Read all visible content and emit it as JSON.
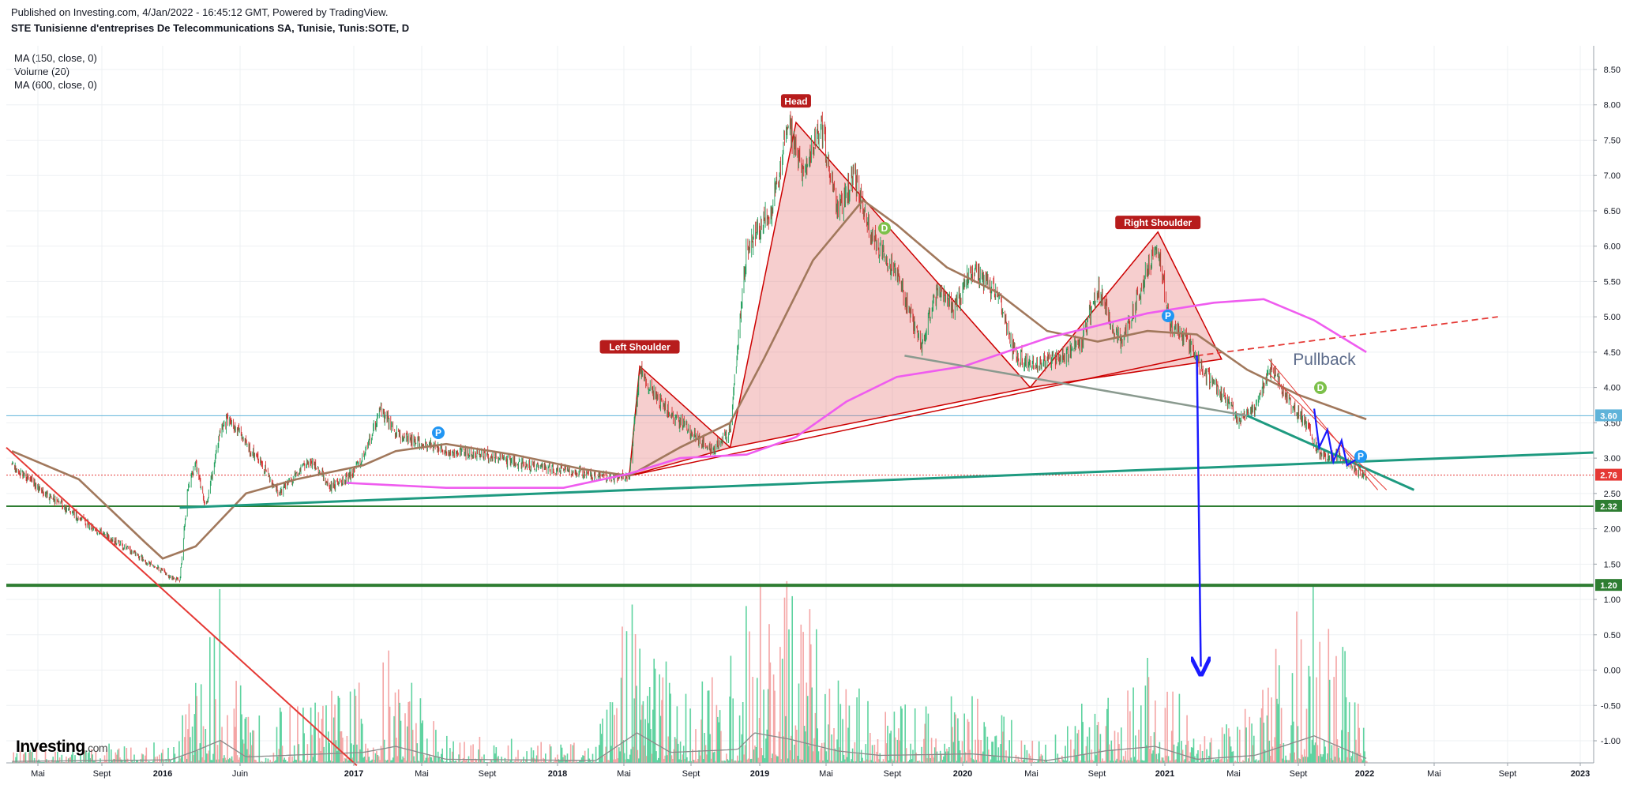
{
  "header": {
    "published": "Published on Investing.com, 4/Jan/2022 - 16:45:12 GMT, Powered by TradingView.",
    "title": "STE Tunisienne d'entreprises De Telecommunications SA, Tunisie, Tunis:SOTE, D"
  },
  "indicators": [
    "MA (150, close, 0)",
    "Volume (20)",
    "MA (600, close, 0)"
  ],
  "logo": {
    "main": "Investing",
    "suffix": ".com"
  },
  "chart_data": {
    "type": "candlestick",
    "title": "STE Tunisienne d'entreprises De Telecommunications SA, Tunisie, Tunis:SOTE, D",
    "x_ticks": [
      "Mai",
      "Sept",
      "2016",
      "Juin",
      "2017",
      "Mai",
      "Sept",
      "2018",
      "Mai",
      "Sept",
      "2019",
      "Mai",
      "Sept",
      "2020",
      "Mai",
      "Sept",
      "2021",
      "Mai",
      "Sept",
      "2022",
      "Mai",
      "Sept",
      "2023"
    ],
    "bold_x_ticks": [
      "2016",
      "2017",
      "2018",
      "2019",
      "2020",
      "2021",
      "2022",
      "2023"
    ],
    "y_ticks": [
      8.5,
      8.0,
      7.5,
      7.0,
      6.5,
      6.0,
      5.5,
      5.0,
      4.5,
      4.0,
      3.5,
      3.0,
      2.5,
      2.0,
      1.5,
      1.0,
      0.5,
      0.0,
      -0.5,
      -1.0
    ],
    "y_range": [
      -1.35,
      8.75
    ],
    "price_levels": [
      {
        "label": "3.60",
        "value": 3.6,
        "color": "#5fb3d9"
      },
      {
        "label": "2.76",
        "value": 2.76,
        "color": "#e53935"
      },
      {
        "label": "2.32",
        "value": 2.32,
        "color": "#2e7d32"
      },
      {
        "label": "1.20",
        "value": 1.2,
        "color": "#2e7d32"
      }
    ],
    "annotations": {
      "left_shoulder": "Left Shoulder",
      "head": "Head",
      "right_shoulder": "Right Shoulder",
      "pullback": "Pullback",
      "markers": [
        "P",
        "D",
        "P",
        "D",
        "P"
      ]
    },
    "price_path": [
      [
        "2015-04-01",
        2.9
      ],
      [
        "2015-06-01",
        2.5
      ],
      [
        "2015-08-01",
        2.15
      ],
      [
        "2015-10-01",
        1.85
      ],
      [
        "2015-12-01",
        1.55
      ],
      [
        "2016-01-10",
        1.35
      ],
      [
        "2016-02-01",
        1.25
      ],
      [
        "2016-02-15",
        2.5
      ],
      [
        "2016-03-01",
        2.95
      ],
      [
        "2016-03-20",
        2.3
      ],
      [
        "2016-04-15",
        3.4
      ],
      [
        "2016-05-01",
        3.55
      ],
      [
        "2016-06-01",
        3.2
      ],
      [
        "2016-07-01",
        2.9
      ],
      [
        "2016-08-01",
        2.5
      ],
      [
        "2016-09-01",
        2.8
      ],
      [
        "2016-10-01",
        2.95
      ],
      [
        "2016-11-01",
        2.6
      ],
      [
        "2016-12-01",
        2.7
      ],
      [
        "2017-01-01",
        3.0
      ],
      [
        "2017-02-01",
        3.7
      ],
      [
        "2017-03-01",
        3.35
      ],
      [
        "2017-04-01",
        3.25
      ],
      [
        "2017-06-01",
        3.1
      ],
      [
        "2017-08-01",
        3.05
      ],
      [
        "2017-10-01",
        2.95
      ],
      [
        "2017-12-01",
        2.85
      ],
      [
        "2018-02-01",
        2.8
      ],
      [
        "2018-04-01",
        2.7
      ],
      [
        "2018-05-01",
        2.75
      ],
      [
        "2018-05-20",
        4.25
      ],
      [
        "2018-06-15",
        3.9
      ],
      [
        "2018-08-01",
        3.5
      ],
      [
        "2018-10-01",
        3.1
      ],
      [
        "2018-11-01",
        3.4
      ],
      [
        "2018-12-01",
        6.0
      ],
      [
        "2019-01-15",
        6.5
      ],
      [
        "2019-02-15",
        7.7
      ],
      [
        "2019-03-15",
        7.0
      ],
      [
        "2019-04-15",
        7.75
      ],
      [
        "2019-05-15",
        6.5
      ],
      [
        "2019-06-15",
        7.0
      ],
      [
        "2019-07-15",
        6.2
      ],
      [
        "2019-09-01",
        5.6
      ],
      [
        "2019-10-15",
        4.6
      ],
      [
        "2019-11-15",
        5.4
      ],
      [
        "2019-12-15",
        5.1
      ],
      [
        "2020-01-15",
        5.7
      ],
      [
        "2020-03-01",
        5.3
      ],
      [
        "2020-04-01",
        4.5
      ],
      [
        "2020-05-01",
        4.3
      ],
      [
        "2020-06-15",
        4.4
      ],
      [
        "2020-08-01",
        4.6
      ],
      [
        "2020-09-01",
        5.4
      ],
      [
        "2020-10-15",
        4.6
      ],
      [
        "2020-12-01",
        5.7
      ],
      [
        "2020-12-20",
        6.0
      ],
      [
        "2021-01-10",
        4.9
      ],
      [
        "2021-02-15",
        4.6
      ],
      [
        "2021-03-15",
        4.2
      ],
      [
        "2021-04-15",
        3.9
      ],
      [
        "2021-05-15",
        3.55
      ],
      [
        "2021-06-15",
        3.7
      ],
      [
        "2021-07-15",
        4.3
      ],
      [
        "2021-08-15",
        3.8
      ],
      [
        "2021-09-15",
        3.5
      ],
      [
        "2021-10-15",
        3.0
      ],
      [
        "2021-11-15",
        3.05
      ],
      [
        "2021-12-15",
        2.85
      ],
      [
        "2022-01-04",
        2.76
      ]
    ],
    "ma150": [
      [
        "2015-04-01",
        3.1
      ],
      [
        "2015-08-01",
        2.7
      ],
      [
        "2015-12-01",
        1.8
      ],
      [
        "2016-01-01",
        1.58
      ],
      [
        "2016-03-01",
        1.75
      ],
      [
        "2016-06-01",
        2.5
      ],
      [
        "2016-09-01",
        2.7
      ],
      [
        "2017-01-01",
        2.9
      ],
      [
        "2017-03-01",
        3.1
      ],
      [
        "2017-06-01",
        3.2
      ],
      [
        "2017-10-01",
        3.05
      ],
      [
        "2018-02-01",
        2.85
      ],
      [
        "2018-05-01",
        2.75
      ],
      [
        "2018-08-01",
        3.15
      ],
      [
        "2018-11-01",
        3.5
      ],
      [
        "2019-01-01",
        4.4
      ],
      [
        "2019-04-01",
        5.8
      ],
      [
        "2019-07-01",
        6.65
      ],
      [
        "2019-09-01",
        6.3
      ],
      [
        "2019-12-01",
        5.7
      ],
      [
        "2020-03-01",
        5.35
      ],
      [
        "2020-06-01",
        4.8
      ],
      [
        "2020-09-01",
        4.65
      ],
      [
        "2020-12-01",
        4.8
      ],
      [
        "2021-03-01",
        4.75
      ],
      [
        "2021-06-01",
        4.25
      ],
      [
        "2021-09-01",
        3.9
      ],
      [
        "2022-01-04",
        3.55
      ]
    ],
    "ma600": [
      [
        "2016-12-01",
        2.65
      ],
      [
        "2017-06-01",
        2.58
      ],
      [
        "2018-01-01",
        2.58
      ],
      [
        "2018-05-01",
        2.78
      ],
      [
        "2018-08-01",
        3.0
      ],
      [
        "2018-12-01",
        3.05
      ],
      [
        "2019-03-01",
        3.3
      ],
      [
        "2019-06-01",
        3.8
      ],
      [
        "2019-09-01",
        4.15
      ],
      [
        "2020-01-01",
        4.3
      ],
      [
        "2020-06-01",
        4.7
      ],
      [
        "2020-12-01",
        5.05
      ],
      [
        "2021-04-01",
        5.2
      ],
      [
        "2021-07-01",
        5.25
      ],
      [
        "2021-10-01",
        4.95
      ],
      [
        "2022-01-04",
        4.5
      ]
    ],
    "volume_profile": [
      [
        "2015-04-01",
        0.05
      ],
      [
        "2016-01-15",
        0.1
      ],
      [
        "2016-03-01",
        0.4
      ],
      [
        "2016-04-15",
        0.75
      ],
      [
        "2016-06-01",
        0.2
      ],
      [
        "2017-01-01",
        0.35
      ],
      [
        "2017-03-01",
        0.55
      ],
      [
        "2017-06-01",
        0.12
      ],
      [
        "2018-03-01",
        0.08
      ],
      [
        "2018-05-15",
        1.0
      ],
      [
        "2018-07-15",
        0.35
      ],
      [
        "2018-11-15",
        0.45
      ],
      [
        "2018-12-15",
        1.0
      ],
      [
        "2019-02-15",
        0.8
      ],
      [
        "2019-05-15",
        0.4
      ],
      [
        "2019-08-01",
        0.25
      ],
      [
        "2020-01-15",
        0.3
      ],
      [
        "2020-06-01",
        0.08
      ],
      [
        "2020-09-15",
        0.4
      ],
      [
        "2020-12-15",
        0.55
      ],
      [
        "2021-03-01",
        0.12
      ],
      [
        "2021-06-15",
        0.25
      ],
      [
        "2021-10-01",
        0.9
      ],
      [
        "2022-01-04",
        0.15
      ]
    ]
  }
}
